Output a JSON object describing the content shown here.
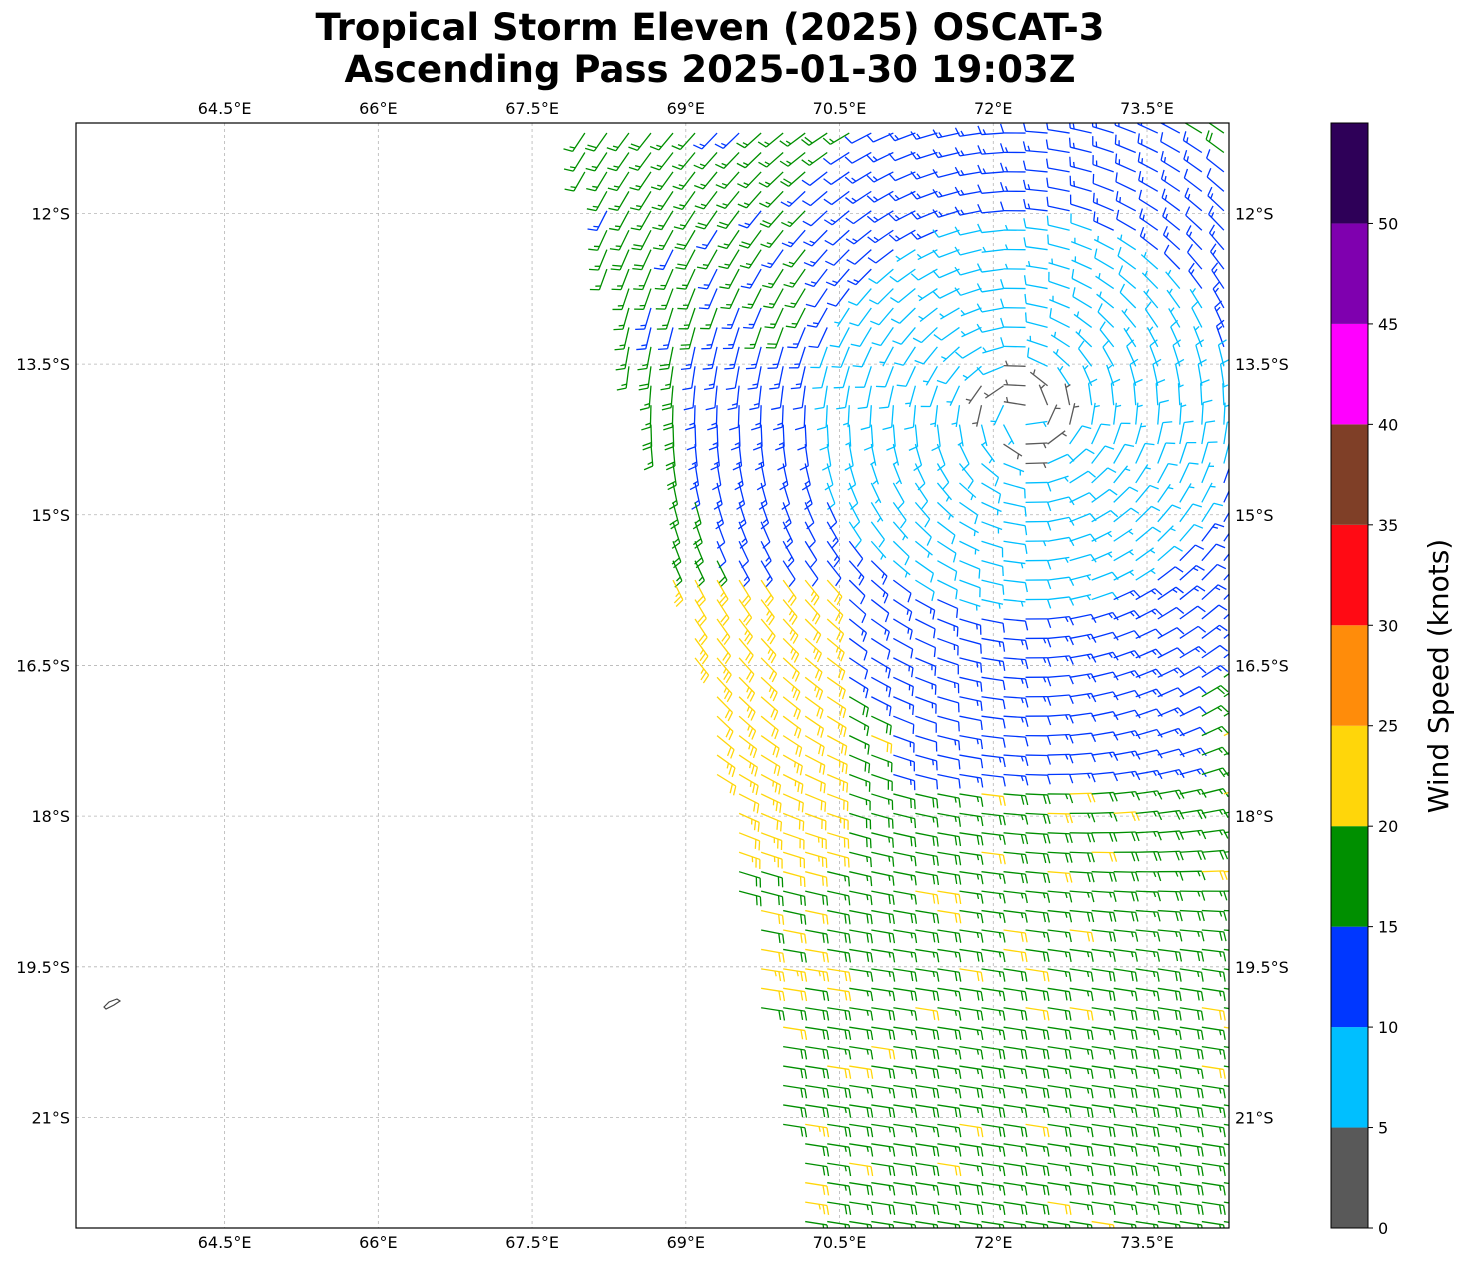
{
  "title": {
    "line1": "Tropical Storm Eleven (2025) OSCAT-3",
    "line2": "Ascending Pass 2025-01-30 19:03Z"
  },
  "map": {
    "lon_range": [
      63.05,
      74.3
    ],
    "lat_range": [
      -22.1,
      -11.1
    ],
    "lon_ticks": [
      {
        "value": 64.5,
        "label": "64.5°E"
      },
      {
        "value": 66,
        "label": "66°E"
      },
      {
        "value": 67.5,
        "label": "67.5°E"
      },
      {
        "value": 69,
        "label": "69°E"
      },
      {
        "value": 70.5,
        "label": "70.5°E"
      },
      {
        "value": 72,
        "label": "72°E"
      },
      {
        "value": 73.5,
        "label": "73.5°E"
      }
    ],
    "lat_ticks": [
      {
        "value": -12,
        "label": "12°S"
      },
      {
        "value": -13.5,
        "label": "13.5°S"
      },
      {
        "value": -15,
        "label": "15°S"
      },
      {
        "value": -16.5,
        "label": "16.5°S"
      },
      {
        "value": -18,
        "label": "18°S"
      },
      {
        "value": -19.5,
        "label": "19.5°S"
      },
      {
        "value": -21,
        "label": "21°S"
      }
    ],
    "gridlines": true,
    "storm_center": {
      "lon": 72.3,
      "lat": -14.0
    }
  },
  "colorbar": {
    "label": "Wind Speed (knots)",
    "bins": [
      {
        "min": 0,
        "max": 5,
        "color": "#595959"
      },
      {
        "min": 5,
        "max": 10,
        "color": "#00bfff"
      },
      {
        "min": 10,
        "max": 15,
        "color": "#0037ff"
      },
      {
        "min": 15,
        "max": 20,
        "color": "#008f00"
      },
      {
        "min": 20,
        "max": 25,
        "color": "#ffd60a"
      },
      {
        "min": 25,
        "max": 30,
        "color": "#ff8c0a"
      },
      {
        "min": 30,
        "max": 35,
        "color": "#ff0a14"
      },
      {
        "min": 35,
        "max": 40,
        "color": "#7f3f27"
      },
      {
        "min": 40,
        "max": 45,
        "color": "#ff00ff"
      },
      {
        "min": 45,
        "max": 50,
        "color": "#7f00af"
      },
      {
        "min": 50,
        "max": 55,
        "color": "#2e0058"
      }
    ],
    "ticks": [
      "0",
      "5",
      "10",
      "15",
      "20",
      "25",
      "30",
      "35",
      "40",
      "45",
      "50"
    ]
  }
}
